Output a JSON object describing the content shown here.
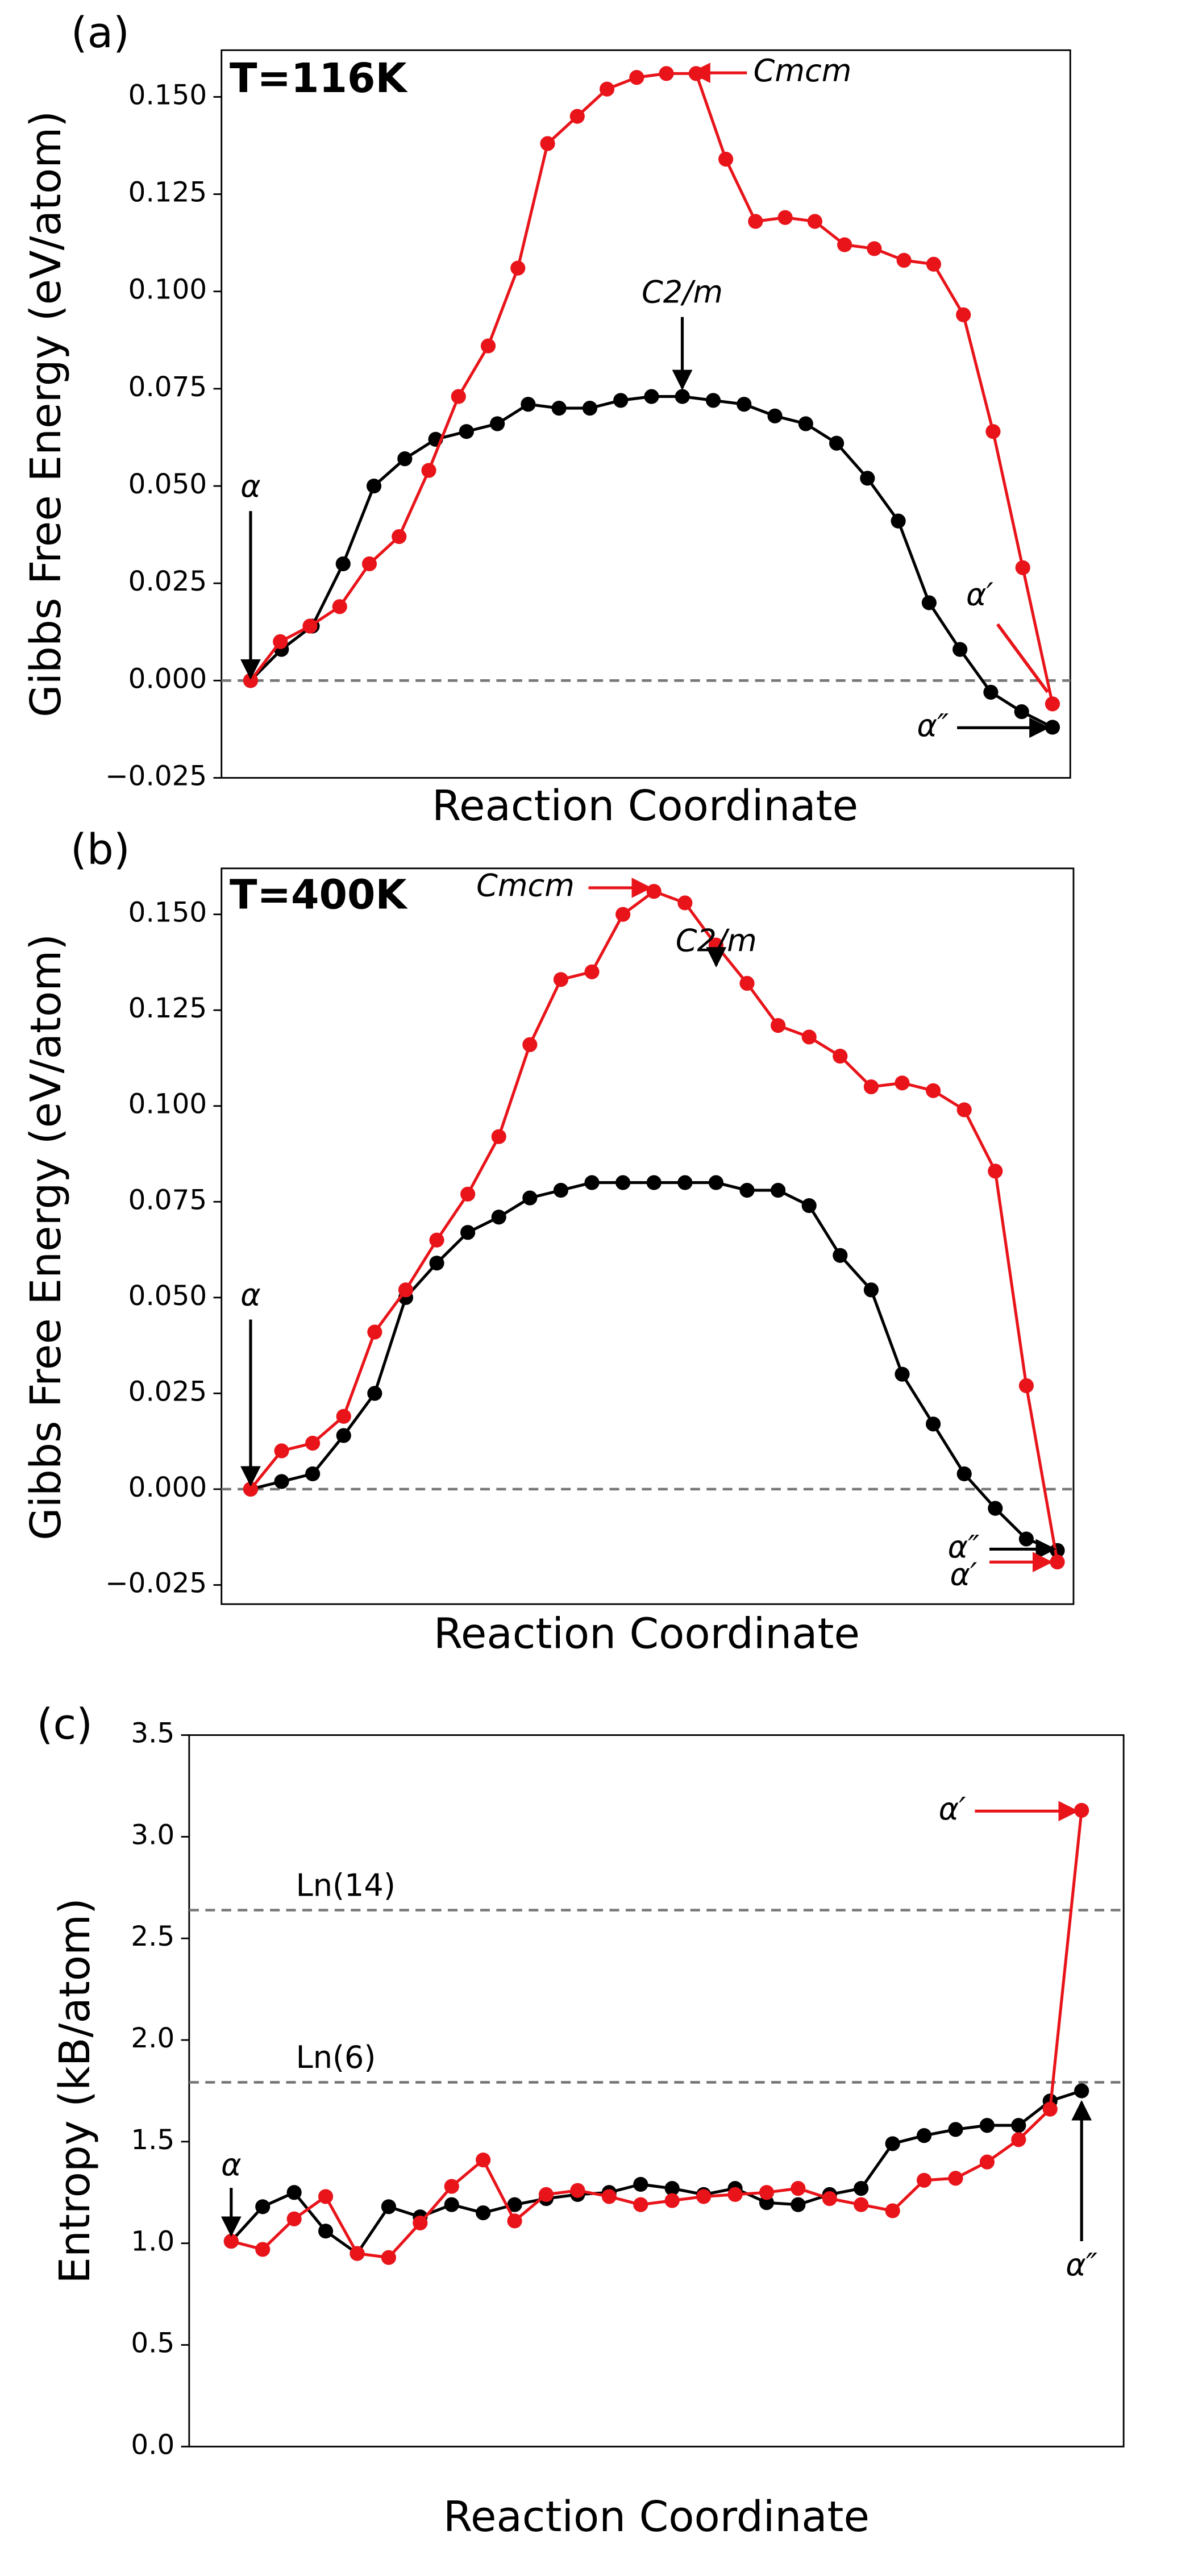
{
  "chart_data": [
    {
      "type": "line",
      "panel": "(a)",
      "xlabel": "Reaction Coordinate",
      "ylabel": "Gibbs Free Energy (eV/atom)",
      "ylim": [
        -0.025,
        0.162
      ],
      "yticks": [
        {
          "value": -0.025,
          "label": "−0.025"
        },
        {
          "value": 0,
          "label": "0.000"
        },
        {
          "value": 0.025,
          "label": "0.025"
        },
        {
          "value": 0.05,
          "label": "0.050"
        },
        {
          "value": 0.075,
          "label": "0.075"
        },
        {
          "value": 0.1,
          "label": "0.100"
        },
        {
          "value": 0.125,
          "label": "0.125"
        },
        {
          "value": 0.15,
          "label": "0.150"
        }
      ],
      "hlines": [
        0
      ],
      "series": [
        {
          "color": "#000000",
          "values": [
            0,
            0.008,
            0.014,
            0.03,
            0.05,
            0.057,
            0.062,
            0.064,
            0.066,
            0.071,
            0.07,
            0.07,
            0.072,
            0.073,
            0.073,
            0.072,
            0.071,
            0.068,
            0.066,
            0.061,
            0.052,
            0.041,
            0.02,
            0.008,
            -0.003,
            -0.008,
            -0.012
          ]
        },
        {
          "color": "#e8141a",
          "values": [
            0,
            0.01,
            0.014,
            0.019,
            0.03,
            0.037,
            0.054,
            0.073,
            0.086,
            0.106,
            0.138,
            0.145,
            0.152,
            0.155,
            0.156,
            0.156,
            0.134,
            0.118,
            0.119,
            0.118,
            0.112,
            0.111,
            0.108,
            0.107,
            0.094,
            0.064,
            0.029,
            -0.006
          ]
        }
      ],
      "annotations": [
        "T=116K",
        "Cmcm",
        "C2/m",
        "α",
        "α′",
        "α″"
      ]
    },
    {
      "type": "line",
      "panel": "(b)",
      "xlabel": "Reaction Coordinate",
      "ylabel": "Gibbs Free Energy (eV/atom)",
      "ylim": [
        -0.03,
        0.162
      ],
      "yticks": [
        {
          "value": -0.025,
          "label": "−0.025"
        },
        {
          "value": 0,
          "label": "0.000"
        },
        {
          "value": 0.025,
          "label": "0.025"
        },
        {
          "value": 0.05,
          "label": "0.050"
        },
        {
          "value": 0.075,
          "label": "0.075"
        },
        {
          "value": 0.1,
          "label": "0.100"
        },
        {
          "value": 0.125,
          "label": "0.125"
        },
        {
          "value": 0.15,
          "label": "0.150"
        }
      ],
      "hlines": [
        0
      ],
      "series": [
        {
          "color": "#000000",
          "values": [
            0,
            0.002,
            0.004,
            0.014,
            0.025,
            0.05,
            0.059,
            0.067,
            0.071,
            0.076,
            0.078,
            0.08,
            0.08,
            0.08,
            0.08,
            0.08,
            0.078,
            0.078,
            0.074,
            0.061,
            0.052,
            0.03,
            0.017,
            0.004,
            -0.005,
            -0.013,
            -0.016
          ]
        },
        {
          "color": "#e8141a",
          "values": [
            0,
            0.01,
            0.012,
            0.019,
            0.041,
            0.052,
            0.065,
            0.077,
            0.092,
            0.116,
            0.133,
            0.135,
            0.15,
            0.156,
            0.153,
            0.142,
            0.132,
            0.121,
            0.118,
            0.113,
            0.105,
            0.106,
            0.104,
            0.099,
            0.083,
            0.027,
            -0.019
          ]
        }
      ],
      "annotations": [
        "T=400K",
        "Cmcm",
        "C2/m",
        "α",
        "α″",
        "α′"
      ]
    },
    {
      "type": "line",
      "panel": "(c)",
      "xlabel": "Reaction Coordinate",
      "ylabel": "Entropy (kB/atom)",
      "ylim": [
        0,
        3.5
      ],
      "yticks": [
        {
          "value": 0,
          "label": "0.0"
        },
        0.5,
        {
          "value": 1,
          "label": "1.0"
        },
        1.5,
        {
          "value": 2,
          "label": "2.0"
        },
        2.5,
        {
          "value": 3,
          "label": "3.0"
        },
        3.5
      ],
      "hlines": [
        {
          "value": 2.639,
          "label": "Ln(14)"
        },
        {
          "value": 1.792,
          "label": "Ln(6)"
        }
      ],
      "series": [
        {
          "color": "#000000",
          "values": [
            1.01,
            1.18,
            1.25,
            1.06,
            0.95,
            1.18,
            1.13,
            1.19,
            1.15,
            1.19,
            1.22,
            1.24,
            1.25,
            1.29,
            1.27,
            1.24,
            1.27,
            1.2,
            1.19,
            1.24,
            1.27,
            1.49,
            1.53,
            1.56,
            1.58,
            1.58,
            1.7,
            1.75
          ]
        },
        {
          "color": "#e8141a",
          "values": [
            1.01,
            0.97,
            1.12,
            1.23,
            0.95,
            0.93,
            1.1,
            1.28,
            1.41,
            1.11,
            1.24,
            1.26,
            1.23,
            1.19,
            1.21,
            1.23,
            1.24,
            1.25,
            1.27,
            1.22,
            1.19,
            1.16,
            1.31,
            1.32,
            1.4,
            1.51,
            1.66,
            3.13
          ]
        }
      ],
      "annotations": [
        "α′",
        "α",
        "α″"
      ]
    }
  ]
}
